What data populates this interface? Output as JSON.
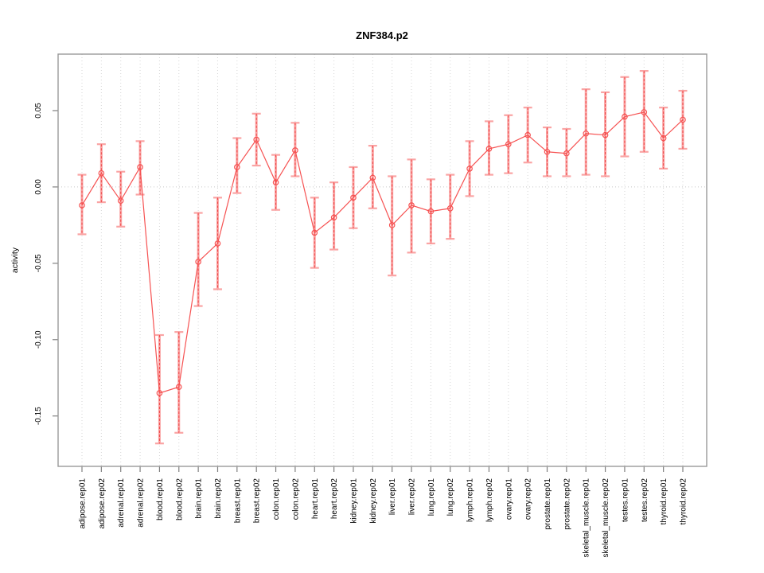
{
  "chart_data": {
    "type": "line",
    "subtype": "points-with-error-bars",
    "title": "ZNF384.p2",
    "xlabel": "",
    "ylabel": "activity",
    "ylim": [
      -0.183,
      0.087
    ],
    "yticks": [
      0.05,
      0.0,
      -0.05,
      -0.1,
      -0.15
    ],
    "ytick_labels": [
      "0.05",
      "0.00",
      "-0.05",
      "-0.10",
      "-0.15"
    ],
    "zero_line": 0,
    "grid": "vertical-dotted-per-category-plus-dotted-zero-line",
    "legend": "none",
    "categories": [
      "adipose.rep01",
      "adipose.rep02",
      "adrenal.rep01",
      "adrenal.rep02",
      "blood.rep01",
      "blood.rep02",
      "brain.rep01",
      "brain.rep02",
      "breast.rep01",
      "breast.rep02",
      "colon.rep01",
      "colon.rep02",
      "heart.rep01",
      "heart.rep02",
      "kidney.rep01",
      "kidney.rep02",
      "liver.rep01",
      "liver.rep02",
      "lung.rep01",
      "lung.rep02",
      "lymph.rep01",
      "lymph.rep02",
      "ovary.rep01",
      "ovary.rep02",
      "prostate.rep01",
      "prostate.rep02",
      "skeletal_muscle.rep01",
      "skeletal_muscle.rep02",
      "testes.rep01",
      "testes.rep02",
      "thyroid.rep01",
      "thyroid.rep02"
    ],
    "series": [
      {
        "name": "activity",
        "values": [
          -0.012,
          0.009,
          -0.009,
          0.013,
          -0.135,
          -0.131,
          -0.049,
          -0.037,
          0.013,
          0.031,
          0.003,
          0.024,
          -0.03,
          -0.02,
          -0.007,
          0.006,
          -0.025,
          -0.012,
          -0.016,
          -0.014,
          0.012,
          0.025,
          0.028,
          0.034,
          0.023,
          0.022,
          0.035,
          0.034,
          0.046,
          0.049,
          0.032,
          0.044
        ],
        "ci_low": [
          -0.031,
          -0.01,
          -0.026,
          -0.005,
          -0.168,
          -0.161,
          -0.078,
          -0.067,
          -0.004,
          0.014,
          -0.015,
          0.007,
          -0.053,
          -0.041,
          -0.027,
          -0.014,
          -0.058,
          -0.043,
          -0.037,
          -0.034,
          -0.006,
          0.008,
          0.009,
          0.016,
          0.007,
          0.007,
          0.008,
          0.007,
          0.02,
          0.023,
          0.012,
          0.025
        ],
        "ci_high": [
          0.008,
          0.028,
          0.01,
          0.03,
          -0.097,
          -0.095,
          -0.017,
          -0.007,
          0.032,
          0.048,
          0.021,
          0.042,
          -0.007,
          0.003,
          0.013,
          0.027,
          0.007,
          0.018,
          0.005,
          0.008,
          0.03,
          0.043,
          0.047,
          0.052,
          0.039,
          0.038,
          0.064,
          0.062,
          0.072,
          0.076,
          0.052,
          0.063
        ]
      }
    ],
    "colors": {
      "point": "#f65252",
      "line": "#f65252",
      "error_bar": "#faa4a4",
      "error_bar_dash": "#ef4848",
      "frame": "#999999",
      "grid": "#d6d6d6",
      "zero_line": "#c8c8c8",
      "tick": "#808080",
      "text": "#000000",
      "background": "#ffffff"
    }
  }
}
